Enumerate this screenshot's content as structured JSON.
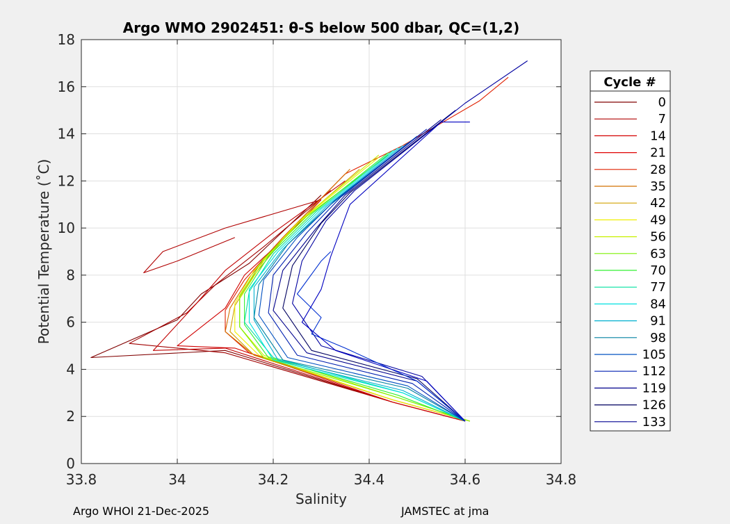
{
  "chart_data": {
    "type": "line",
    "title": "Argo WMO 2902451: θ-S below 500 dbar,  QC=(1,2)",
    "xlabel": "Salinity",
    "ylabel": "Potential Temperature (˚C)",
    "xlim": [
      33.8,
      34.8
    ],
    "ylim": [
      0,
      18
    ],
    "xticks": [
      "33.8",
      "34",
      "34.2",
      "34.4",
      "34.6",
      "34.8"
    ],
    "yticks": [
      "0",
      "2",
      "4",
      "6",
      "8",
      "10",
      "12",
      "14",
      "16",
      "18"
    ],
    "grid": true,
    "legend": {
      "title": "Cycle #",
      "placement": "outside-right",
      "entries": [
        {
          "label": "0",
          "color": "#800000"
        },
        {
          "label": "7",
          "color": "#b00000"
        },
        {
          "label": "14",
          "color": "#d40000"
        },
        {
          "label": "21",
          "color": "#e00000"
        },
        {
          "label": "28",
          "color": "#e02000"
        },
        {
          "label": "35",
          "color": "#d27000"
        },
        {
          "label": "42",
          "color": "#d2a000"
        },
        {
          "label": "49",
          "color": "#f0f000"
        },
        {
          "label": "56",
          "color": "#c8f000"
        },
        {
          "label": "63",
          "color": "#7cf000"
        },
        {
          "label": "70",
          "color": "#30f030"
        },
        {
          "label": "77",
          "color": "#00e0a0"
        },
        {
          "label": "84",
          "color": "#00e0e0"
        },
        {
          "label": "91",
          "color": "#00b0d0"
        },
        {
          "label": "98",
          "color": "#0080a0"
        },
        {
          "label": "105",
          "color": "#0050c0"
        },
        {
          "label": "112",
          "color": "#0020b0"
        },
        {
          "label": "119",
          "color": "#00008c"
        },
        {
          "label": "126",
          "color": "#000060"
        },
        {
          "label": "133",
          "color": "#000090"
        }
      ]
    },
    "series": [
      {
        "color": "#800000",
        "points": [
          [
            34.6,
            1.8
          ],
          [
            34.45,
            2.6
          ],
          [
            34.1,
            4.8
          ],
          [
            33.82,
            4.5
          ],
          [
            34.0,
            6.1
          ],
          [
            34.05,
            7.2
          ],
          [
            34.15,
            8.5
          ],
          [
            34.3,
            11.4
          ]
        ]
      },
      {
        "color": "#a00000",
        "points": [
          [
            34.6,
            1.8
          ],
          [
            34.45,
            2.6
          ],
          [
            34.1,
            4.7
          ],
          [
            33.9,
            5.1
          ],
          [
            34.02,
            6.4
          ],
          [
            34.08,
            7.6
          ],
          [
            34.18,
            9.2
          ],
          [
            34.32,
            11.6
          ]
        ]
      },
      {
        "color": "#c00000",
        "points": [
          [
            34.6,
            1.8
          ],
          [
            34.45,
            2.6
          ],
          [
            34.1,
            4.9
          ],
          [
            33.95,
            4.8
          ],
          [
            34.04,
            6.8
          ],
          [
            34.1,
            8.2
          ],
          [
            34.2,
            9.8
          ],
          [
            34.35,
            12.0
          ]
        ]
      },
      {
        "color": "#d00000",
        "points": [
          [
            34.6,
            1.8
          ],
          [
            34.45,
            2.6
          ],
          [
            34.12,
            4.9
          ],
          [
            34.0,
            5.0
          ],
          [
            34.1,
            6.6
          ],
          [
            34.14,
            8.0
          ],
          [
            34.22,
            9.5
          ],
          [
            34.3,
            11.2
          ]
        ]
      },
      {
        "color": "#b00000",
        "points": [
          [
            34.3,
            11.2
          ],
          [
            34.1,
            10.0
          ],
          [
            33.97,
            9.0
          ],
          [
            33.93,
            8.1
          ],
          [
            34.0,
            8.6
          ],
          [
            34.12,
            9.6
          ]
        ]
      },
      {
        "color": "#e02000",
        "points": [
          [
            34.61,
            1.8
          ],
          [
            34.45,
            2.7
          ],
          [
            34.15,
            4.7
          ],
          [
            34.1,
            5.6
          ],
          [
            34.1,
            6.5
          ],
          [
            34.14,
            7.8
          ],
          [
            34.22,
            9.6
          ],
          [
            34.35,
            12.3
          ],
          [
            34.47,
            13.5
          ],
          [
            34.63,
            15.4
          ],
          [
            34.69,
            16.4
          ]
        ]
      },
      {
        "color": "#d27000",
        "points": [
          [
            34.61,
            1.8
          ],
          [
            34.45,
            2.7
          ],
          [
            34.16,
            4.6
          ],
          [
            34.1,
            5.6
          ],
          [
            34.11,
            6.6
          ],
          [
            34.15,
            7.9
          ],
          [
            34.22,
            9.6
          ],
          [
            34.36,
            12.5
          ]
        ]
      },
      {
        "color": "#d2a000",
        "points": [
          [
            34.61,
            1.8
          ],
          [
            34.45,
            2.7
          ],
          [
            34.16,
            4.6
          ],
          [
            34.11,
            5.6
          ],
          [
            34.12,
            6.7
          ],
          [
            34.16,
            8.0
          ],
          [
            34.24,
            10.0
          ],
          [
            34.38,
            12.5
          ]
        ]
      },
      {
        "color": "#f0f000",
        "points": [
          [
            34.61,
            1.8
          ],
          [
            34.45,
            2.7
          ],
          [
            34.17,
            4.6
          ],
          [
            34.12,
            5.6
          ],
          [
            34.12,
            6.8
          ],
          [
            34.16,
            8.2
          ],
          [
            34.25,
            10.2
          ],
          [
            34.42,
            13.0
          ]
        ]
      },
      {
        "color": "#c8f000",
        "points": [
          [
            34.61,
            1.8
          ],
          [
            34.46,
            2.8
          ],
          [
            34.18,
            4.6
          ],
          [
            34.13,
            5.8
          ],
          [
            34.13,
            7.0
          ],
          [
            34.18,
            8.6
          ],
          [
            34.26,
            10.4
          ],
          [
            34.42,
            13.1
          ]
        ]
      },
      {
        "color": "#7cf000",
        "points": [
          [
            34.61,
            1.8
          ],
          [
            34.46,
            2.8
          ],
          [
            34.18,
            4.5
          ],
          [
            34.13,
            5.8
          ],
          [
            34.13,
            7.1
          ],
          [
            34.18,
            8.7
          ],
          [
            34.27,
            10.5
          ],
          [
            34.44,
            13.1
          ]
        ]
      },
      {
        "color": "#30f030",
        "points": [
          [
            34.6,
            1.8
          ],
          [
            34.46,
            2.9
          ],
          [
            34.19,
            4.5
          ],
          [
            34.14,
            5.9
          ],
          [
            34.14,
            7.2
          ],
          [
            34.19,
            8.8
          ],
          [
            34.28,
            10.6
          ],
          [
            34.44,
            13.2
          ]
        ]
      },
      {
        "color": "#00e0a0",
        "points": [
          [
            34.6,
            1.8
          ],
          [
            34.47,
            3.0
          ],
          [
            34.2,
            4.5
          ],
          [
            34.14,
            6.0
          ],
          [
            34.15,
            7.3
          ],
          [
            34.2,
            8.9
          ],
          [
            34.29,
            10.7
          ],
          [
            34.45,
            13.3
          ]
        ]
      },
      {
        "color": "#00e0e0",
        "points": [
          [
            34.6,
            1.8
          ],
          [
            34.47,
            3.0
          ],
          [
            34.2,
            4.4
          ],
          [
            34.15,
            6.0
          ],
          [
            34.15,
            7.4
          ],
          [
            34.21,
            9.0
          ],
          [
            34.3,
            10.8
          ],
          [
            34.46,
            13.4
          ]
        ]
      },
      {
        "color": "#00b0d0",
        "points": [
          [
            34.6,
            1.8
          ],
          [
            34.47,
            3.1
          ],
          [
            34.21,
            4.4
          ],
          [
            34.16,
            6.1
          ],
          [
            34.16,
            7.5
          ],
          [
            34.22,
            9.1
          ],
          [
            34.31,
            10.9
          ],
          [
            34.47,
            13.5
          ]
        ]
      },
      {
        "color": "#0080a0",
        "points": [
          [
            34.6,
            1.8
          ],
          [
            34.48,
            3.2
          ],
          [
            34.22,
            4.4
          ],
          [
            34.16,
            6.2
          ],
          [
            34.17,
            7.6
          ],
          [
            34.23,
            9.3
          ],
          [
            34.32,
            11.0
          ],
          [
            34.48,
            13.6
          ]
        ]
      },
      {
        "color": "#0050c0",
        "points": [
          [
            34.6,
            1.8
          ],
          [
            34.48,
            3.3
          ],
          [
            34.23,
            4.5
          ],
          [
            34.17,
            6.3
          ],
          [
            34.18,
            7.8
          ],
          [
            34.25,
            9.6
          ],
          [
            34.33,
            11.2
          ],
          [
            34.5,
            13.9
          ]
        ]
      },
      {
        "color": "#0020b0",
        "points": [
          [
            34.6,
            1.8
          ],
          [
            34.49,
            3.4
          ],
          [
            34.25,
            4.6
          ],
          [
            34.19,
            6.4
          ],
          [
            34.2,
            8.0
          ],
          [
            34.27,
            9.8
          ],
          [
            34.34,
            11.3
          ],
          [
            34.52,
            14.2
          ]
        ]
      },
      {
        "color": "#00008c",
        "points": [
          [
            34.6,
            1.8
          ],
          [
            34.5,
            3.5
          ],
          [
            34.27,
            4.7
          ],
          [
            34.2,
            6.5
          ],
          [
            34.22,
            8.2
          ],
          [
            34.29,
            10.0
          ],
          [
            34.35,
            11.4
          ],
          [
            34.55,
            14.6
          ]
        ]
      },
      {
        "color": "#000060",
        "points": [
          [
            34.6,
            1.8
          ],
          [
            34.5,
            3.6
          ],
          [
            34.28,
            4.8
          ],
          [
            34.22,
            6.6
          ],
          [
            34.24,
            8.4
          ],
          [
            34.3,
            10.2
          ],
          [
            34.36,
            11.5
          ],
          [
            34.58,
            15.0
          ]
        ]
      },
      {
        "color": "#0000a0",
        "points": [
          [
            34.6,
            1.8
          ],
          [
            34.51,
            3.7
          ],
          [
            34.3,
            5.0
          ],
          [
            34.24,
            6.8
          ],
          [
            34.26,
            8.6
          ],
          [
            34.31,
            10.3
          ],
          [
            34.37,
            11.6
          ],
          [
            34.6,
            15.3
          ],
          [
            34.73,
            17.1
          ]
        ]
      },
      {
        "color": "#0030d0",
        "points": [
          [
            34.6,
            1.8
          ],
          [
            34.5,
            3.5
          ],
          [
            34.35,
            4.9
          ],
          [
            34.28,
            5.5
          ],
          [
            34.3,
            6.2
          ],
          [
            34.25,
            7.2
          ],
          [
            34.3,
            8.6
          ],
          [
            34.32,
            9.0
          ]
        ]
      },
      {
        "color": "#0000c0",
        "points": [
          [
            34.6,
            1.8
          ],
          [
            34.52,
            3.5
          ],
          [
            34.33,
            4.8
          ],
          [
            34.26,
            6.0
          ],
          [
            34.3,
            7.4
          ],
          [
            34.32,
            8.8
          ],
          [
            34.36,
            11.0
          ],
          [
            34.55,
            14.5
          ],
          [
            34.61,
            14.5
          ]
        ]
      }
    ]
  },
  "footer": {
    "left": "Argo WHOI 21-Dec-2025",
    "right": "JAMSTEC at jma"
  }
}
